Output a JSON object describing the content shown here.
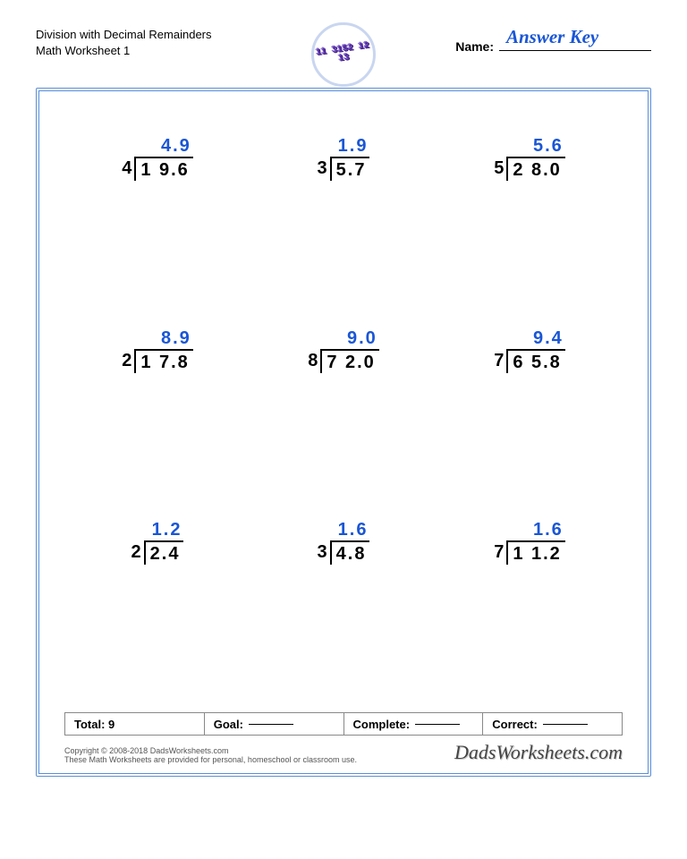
{
  "header": {
    "title_line1": "Division with Decimal Remainders",
    "title_line2": "Math Worksheet 1",
    "name_label": "Name:",
    "answer_key": "Answer Key"
  },
  "logo": {
    "text": "11\n3152\n12\n13"
  },
  "problems": [
    {
      "quotient": "4.9",
      "divisor": "4",
      "dividend": "1 9.6"
    },
    {
      "quotient": "1.9",
      "divisor": "3",
      "dividend": "5.7"
    },
    {
      "quotient": "5.6",
      "divisor": "5",
      "dividend": "2 8.0"
    },
    {
      "quotient": "8.9",
      "divisor": "2",
      "dividend": "1 7.8"
    },
    {
      "quotient": "9.0",
      "divisor": "8",
      "dividend": "7 2.0"
    },
    {
      "quotient": "9.4",
      "divisor": "7",
      "dividend": "6 5.8"
    },
    {
      "quotient": "1.2",
      "divisor": "2",
      "dividend": "2.4"
    },
    {
      "quotient": "1.6",
      "divisor": "3",
      "dividend": "4.8"
    },
    {
      "quotient": "1.6",
      "divisor": "7",
      "dividend": "1 1.2"
    }
  ],
  "footer": {
    "total_label": "Total:",
    "total_value": "9",
    "goal_label": "Goal:",
    "complete_label": "Complete:",
    "correct_label": "Correct:"
  },
  "copyright": {
    "line1": "Copyright © 2008-2018 DadsWorksheets.com",
    "line2": "These Math Worksheets are provided for personal, homeschool or classroom use.",
    "brand": "DadsWorksheets.com"
  },
  "colors": {
    "answer_blue": "#1a56d6",
    "frame_blue": "#5a8fd6",
    "logo_purple": "#5b2fb0"
  }
}
